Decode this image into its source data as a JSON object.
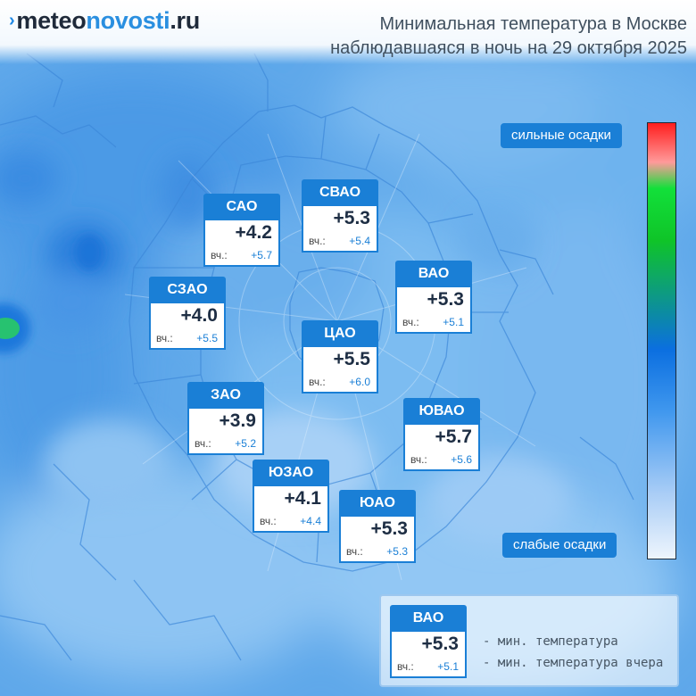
{
  "logo": {
    "mark": "›",
    "part1": "meteo",
    "part2": "novosti",
    "part3": ".ru"
  },
  "title": {
    "line1": "Минимальная температура в Москве",
    "line2": "наблюдавшаяся в ночь на 29 октября 2025"
  },
  "districts": [
    {
      "name": "САО",
      "min_temp": "+4.2",
      "yesterday_label": "вч.:",
      "yesterday_temp": "+5.7"
    },
    {
      "name": "СВАО",
      "min_temp": "+5.3",
      "yesterday_label": "вч.:",
      "yesterday_temp": "+5.4"
    },
    {
      "name": "СЗАО",
      "min_temp": "+4.0",
      "yesterday_label": "вч.:",
      "yesterday_temp": "+5.5"
    },
    {
      "name": "ВАО",
      "min_temp": "+5.3",
      "yesterday_label": "вч.:",
      "yesterday_temp": "+5.1"
    },
    {
      "name": "ЦАО",
      "min_temp": "+5.5",
      "yesterday_label": "вч.:",
      "yesterday_temp": "+6.0"
    },
    {
      "name": "ЗАО",
      "min_temp": "+3.9",
      "yesterday_label": "вч.:",
      "yesterday_temp": "+5.2"
    },
    {
      "name": "ЮВАО",
      "min_temp": "+5.7",
      "yesterday_label": "вч.:",
      "yesterday_temp": "+5.6"
    },
    {
      "name": "ЮЗАО",
      "min_temp": "+4.1",
      "yesterday_label": "вч.:",
      "yesterday_temp": "+4.4"
    },
    {
      "name": "ЮАО",
      "min_temp": "+5.3",
      "yesterday_label": "вч.:",
      "yesterday_temp": "+5.3"
    }
  ],
  "precip_scale": {
    "high_label": "сильные осадки",
    "low_label": "слабые осадки",
    "colors": [
      "#ff1e1e",
      "#12e03a",
      "#0b6fe0",
      "#eef5fd"
    ]
  },
  "legend": {
    "sample": {
      "name": "ВАО",
      "min_temp": "+5.3",
      "yesterday_label": "вч.:",
      "yesterday_temp": "+5.1"
    },
    "min_temp_desc": "- мин. температура",
    "yesterday_desc": "- мин. температура вчера"
  },
  "colors": {
    "accent": "#1a7fd6",
    "map_base": "#5aa6ea",
    "map_light": "#a8d0f6",
    "map_dark": "#1d7fe0",
    "precip_spot": "#27c270"
  }
}
